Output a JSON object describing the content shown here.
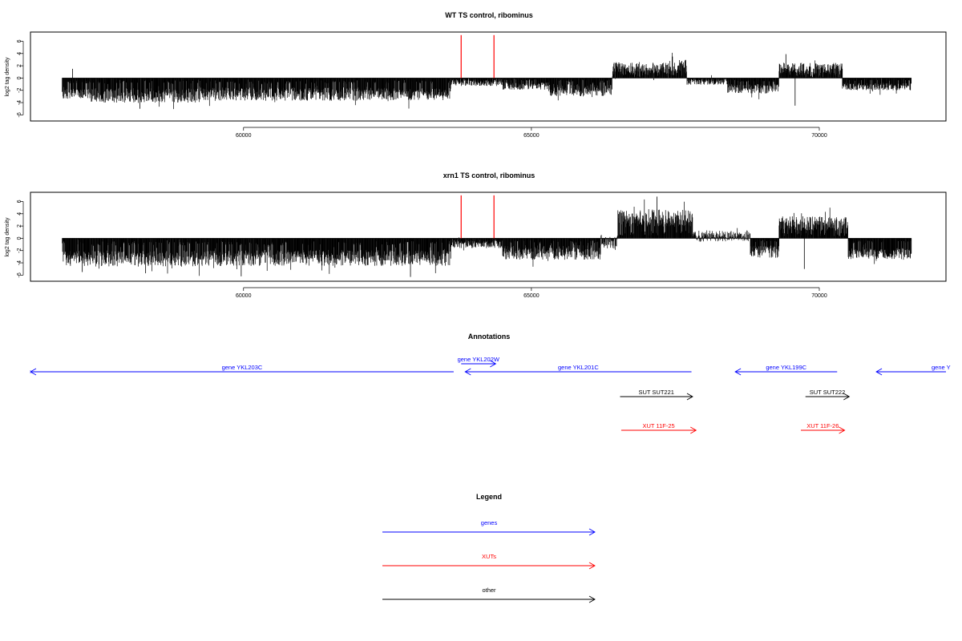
{
  "chart_data": [
    {
      "type": "bar",
      "title": "WT TS control, ribominus",
      "ylabel": "log2 tag density",
      "xlabel": "",
      "xlim": [
        56300,
        72200
      ],
      "ylim": [
        -7,
        7.5
      ],
      "x_ticks": [
        60000,
        65000,
        70000
      ],
      "x_tick_labels": [
        "60000",
        "65000",
        "70000"
      ],
      "y_ticks": [
        6,
        4,
        2,
        0,
        -2,
        -4,
        -6
      ],
      "y_tick_labels": [
        "6",
        "4",
        "2",
        "0",
        "-2",
        "-4",
        "-6"
      ],
      "grid": false,
      "series": [
        {
          "color": "#000000",
          "density_profile": [
            {
              "from": 56850,
              "to": 57350,
              "mean": -2.6,
              "spread": 0.8
            },
            {
              "from": 57350,
              "to": 59300,
              "mean": -2.8,
              "spread": 1.2
            },
            {
              "from": 59300,
              "to": 62300,
              "mean": -2.6,
              "spread": 1.1
            },
            {
              "from": 62300,
              "to": 63600,
              "mean": -2.6,
              "spread": 1.0
            },
            {
              "from": 63600,
              "to": 64500,
              "mean": -0.8,
              "spread": 0.5
            },
            {
              "from": 64500,
              "to": 65300,
              "mean": -1.3,
              "spread": 0.6
            },
            {
              "from": 65300,
              "to": 66400,
              "mean": -2.0,
              "spread": 1.0
            },
            {
              "from": 66400,
              "to": 67400,
              "mean": 1.6,
              "spread": 1.0
            },
            {
              "from": 67400,
              "to": 67700,
              "mean": 2.0,
              "spread": 1.0
            },
            {
              "from": 67700,
              "to": 68400,
              "mean": -0.6,
              "spread": 0.5
            },
            {
              "from": 68400,
              "to": 69300,
              "mean": -1.7,
              "spread": 0.8
            },
            {
              "from": 69300,
              "to": 70400,
              "mean": 1.5,
              "spread": 1.0
            },
            {
              "from": 70400,
              "to": 71600,
              "mean": -1.4,
              "spread": 0.6
            }
          ],
          "peaks": [
            [
              57030,
              1.5
            ],
            [
              58200,
              -5.0
            ],
            [
              67450,
              3.5
            ],
            [
              69420,
              3.9
            ],
            [
              69580,
              -4.5
            ]
          ]
        },
        {
          "color": "#ff0000",
          "marker_lines": [
            {
              "x": 63780,
              "y": 7.0
            },
            {
              "x": 64350,
              "y": 7.0
            }
          ]
        }
      ]
    },
    {
      "type": "bar",
      "title": "xrn1 TS control, ribominus",
      "ylabel": "log2 tag density",
      "xlabel": "",
      "xlim": [
        56300,
        72200
      ],
      "ylim": [
        -7,
        7.5
      ],
      "x_ticks": [
        60000,
        65000,
        70000
      ],
      "x_tick_labels": [
        "60000",
        "65000",
        "70000"
      ],
      "y_ticks": [
        6,
        4,
        2,
        0,
        -2,
        -4,
        -6
      ],
      "y_tick_labels": [
        "6",
        "4",
        "2",
        "0",
        "-2",
        "-4",
        "-6"
      ],
      "grid": false,
      "series": [
        {
          "color": "#000000",
          "density_profile": [
            {
              "from": 56850,
              "to": 59300,
              "mean": -3.3,
              "spread": 1.3
            },
            {
              "from": 59300,
              "to": 63600,
              "mean": -3.2,
              "spread": 1.3
            },
            {
              "from": 63600,
              "to": 64500,
              "mean": -1.0,
              "spread": 0.6
            },
            {
              "from": 64500,
              "to": 66200,
              "mean": -2.3,
              "spread": 1.2
            },
            {
              "from": 66200,
              "to": 66500,
              "mean": -0.5,
              "spread": 1.2
            },
            {
              "from": 66500,
              "to": 67800,
              "mean": 3.3,
              "spread": 1.4
            },
            {
              "from": 67800,
              "to": 68800,
              "mean": 0.4,
              "spread": 0.9
            },
            {
              "from": 68800,
              "to": 69300,
              "mean": -2.2,
              "spread": 1.0
            },
            {
              "from": 69300,
              "to": 70500,
              "mean": 2.4,
              "spread": 1.2
            },
            {
              "from": 70500,
              "to": 71600,
              "mean": -2.5,
              "spread": 0.9
            }
          ],
          "peaks": [
            [
              57200,
              -5.5
            ],
            [
              58300,
              -5.7
            ],
            [
              59960,
              -6.2
            ],
            [
              62900,
              -6.3
            ],
            [
              67180,
              6.8
            ],
            [
              69740,
              -5.0
            ]
          ]
        },
        {
          "color": "#ff0000",
          "marker_lines": [
            {
              "x": 63780,
              "y": 7.0
            },
            {
              "x": 64350,
              "y": 7.0
            }
          ]
        }
      ]
    }
  ],
  "annotations": {
    "title": "Annotations",
    "features": [
      {
        "label": "gene YKL203C",
        "color": "#0000ff",
        "strand": "-",
        "start": 56300,
        "end": 63650,
        "row": 0
      },
      {
        "label": "gene YKL202W",
        "color": "#0000ff",
        "strand": "+",
        "start": 63780,
        "end": 64380,
        "row": -1
      },
      {
        "label": "gene YKL201C",
        "color": "#0000ff",
        "strand": "-",
        "start": 63850,
        "end": 67780,
        "row": 0
      },
      {
        "label": "gene YKL199C",
        "color": "#0000ff",
        "strand": "-",
        "start": 68540,
        "end": 70310,
        "row": 0
      },
      {
        "label": "gene Y",
        "color": "#0000ff",
        "strand": "-",
        "start": 70990,
        "end": 72200,
        "row": 0
      },
      {
        "label": "SUT SUT221",
        "color": "#000000",
        "strand": "+",
        "start": 66540,
        "end": 67800,
        "row": 1
      },
      {
        "label": "SUT SUT222",
        "color": "#000000",
        "strand": "+",
        "start": 69760,
        "end": 70520,
        "row": 1
      },
      {
        "label": "XUT 11F-25",
        "color": "#ff0000",
        "strand": "+",
        "start": 66560,
        "end": 67860,
        "row": 2
      },
      {
        "label": "XUT 11F-26",
        "color": "#ff0000",
        "strand": "+",
        "start": 69680,
        "end": 70440,
        "row": 2
      }
    ],
    "left_edge_mark": ":"
  },
  "legend": {
    "title": "Legend",
    "items": [
      {
        "label": "genes",
        "color": "#0000ff"
      },
      {
        "label": "XUTs",
        "color": "#ff0000"
      },
      {
        "label": "other",
        "color": "#000000"
      }
    ]
  }
}
